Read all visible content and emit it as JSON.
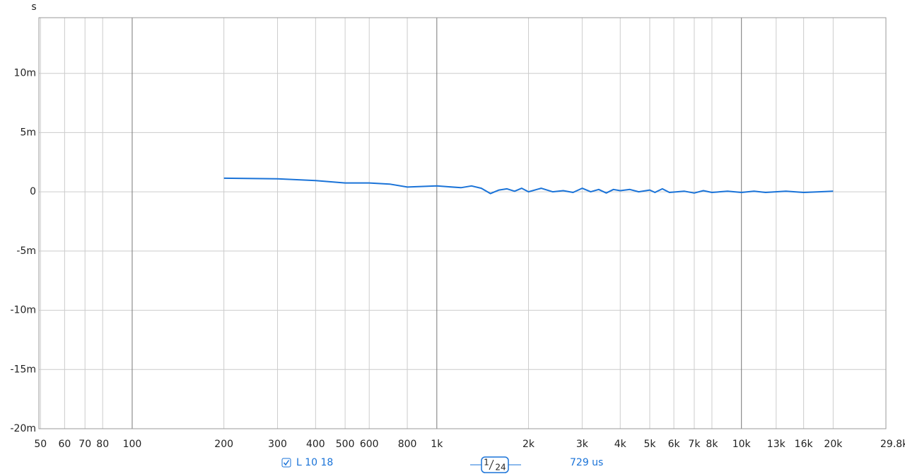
{
  "chart_data": {
    "type": "line",
    "y_unit": "s",
    "log_x": true,
    "grid": true,
    "xlim": [
      49.4,
      29800
    ],
    "ylim": [
      -0.02,
      0.0147
    ],
    "xticks": [
      50,
      60,
      70,
      80,
      100,
      200,
      300,
      400,
      500,
      600,
      800,
      {
        "value": 1000,
        "label": "1k"
      },
      {
        "value": 2000,
        "label": "2k"
      },
      {
        "value": 3000,
        "label": "3k"
      },
      {
        "value": 4000,
        "label": "4k"
      },
      {
        "value": 5000,
        "label": "5k"
      },
      {
        "value": 6000,
        "label": "6k"
      },
      {
        "value": 7000,
        "label": "7k"
      },
      {
        "value": 8000,
        "label": "8k"
      },
      {
        "value": 10000,
        "label": "10k"
      },
      {
        "value": 13000,
        "label": "13k"
      },
      {
        "value": 16000,
        "label": "16k"
      },
      {
        "value": 20000,
        "label": "20k"
      },
      {
        "value": 29800,
        "label": "29.8kHz"
      }
    ],
    "yticks": [
      {
        "value": 0.01,
        "label": "10m"
      },
      {
        "value": 0.005,
        "label": "5m"
      },
      0,
      {
        "value": -0.005,
        "label": "-5m"
      },
      {
        "value": -0.01,
        "label": "-10m"
      },
      {
        "value": -0.015,
        "label": "-15m"
      },
      {
        "value": -0.02,
        "label": "-20m"
      }
    ],
    "x": [
      200,
      300,
      400,
      500,
      600,
      700,
      800,
      1000,
      1200,
      1300,
      1400,
      1500,
      1600,
      1700,
      1800,
      1900,
      2000,
      2200,
      2400,
      2600,
      2800,
      3000,
      3200,
      3400,
      3600,
      3800,
      4000,
      4300,
      4600,
      5000,
      5200,
      5500,
      5800,
      6500,
      7000,
      7500,
      8000,
      9000,
      10000,
      11000,
      12000,
      14000,
      16000,
      18000,
      20000
    ],
    "series": [
      {
        "name": "L 10 18",
        "color": "#1a73d8",
        "values": [
          0.00115,
          0.0011,
          0.00095,
          0.00075,
          0.00075,
          0.00065,
          0.0004,
          0.0005,
          0.00035,
          0.0005,
          0.0003,
          -0.00015,
          0.00015,
          0.00025,
          5e-05,
          0.0003,
          0,
          0.0003,
          0,
          0.0001,
          -5e-05,
          0.0003,
          0,
          0.0002,
          -0.0001,
          0.0002,
          0.0001,
          0.0002,
          0,
          0.00015,
          -5e-05,
          0.00025,
          -5e-05,
          5e-05,
          -0.0001,
          0.0001,
          -5e-05,
          5e-05,
          -5e-05,
          5e-05,
          -5e-05,
          5e-05,
          -5e-05,
          0,
          5e-05
        ]
      }
    ]
  },
  "controls": {
    "smoothing": {
      "numerator": "1",
      "denominator": "24"
    },
    "delay": "729 us"
  }
}
